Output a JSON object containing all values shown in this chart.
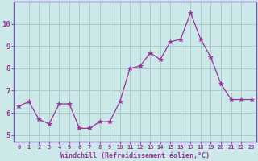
{
  "x": [
    0,
    1,
    2,
    3,
    4,
    5,
    6,
    7,
    8,
    9,
    10,
    11,
    12,
    13,
    14,
    15,
    16,
    17,
    18,
    19,
    20,
    21,
    22,
    23
  ],
  "y": [
    6.3,
    6.5,
    5.7,
    5.5,
    6.4,
    6.4,
    5.3,
    5.3,
    5.6,
    5.6,
    6.5,
    8.0,
    8.1,
    8.7,
    8.4,
    9.2,
    9.3,
    10.5,
    9.3,
    8.5,
    7.3,
    6.6,
    6.6,
    6.6
  ],
  "line_color": "#993399",
  "marker": "*",
  "marker_size": 4,
  "bg_color": "#cce8e8",
  "grid_color": "#aacccc",
  "xlabel": "Windchill (Refroidissement éolien,°C)",
  "ylabel_ticks": [
    5,
    6,
    7,
    8,
    9,
    10
  ],
  "xlim": [
    -0.5,
    23.5
  ],
  "ylim": [
    4.7,
    11.0
  ],
  "label_color": "#993399",
  "spine_color": "#7755aa",
  "font_family": "monospace",
  "xtick_fontsize": 5.0,
  "ytick_fontsize": 6.5,
  "xlabel_fontsize": 6.0
}
